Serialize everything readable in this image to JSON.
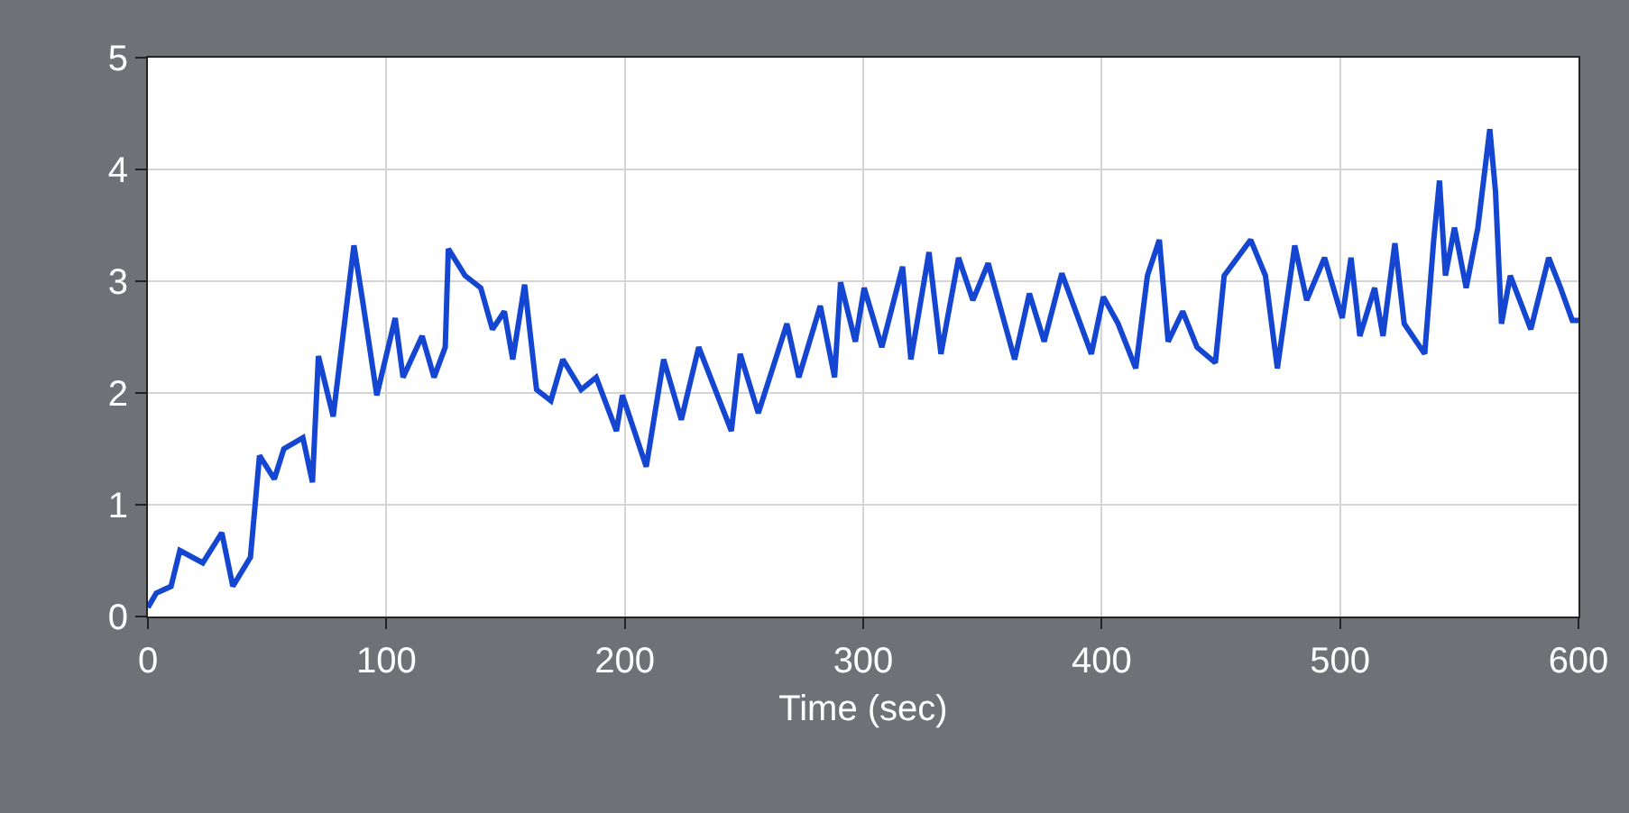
{
  "chart_data": {
    "type": "line",
    "xlabel": "Time (sec)",
    "xlim": [
      0,
      600
    ],
    "xticks": [
      0,
      100,
      200,
      300,
      400,
      500,
      600
    ],
    "ylim": [
      0,
      5
    ],
    "yticks": [
      0,
      1,
      2,
      3,
      4,
      5
    ],
    "grid": true,
    "marker": "none",
    "line_style": "solid",
    "series": [
      {
        "color": "#1446d2",
        "x": [
          0,
          3.5,
          9.7,
          13.4,
          23,
          31,
          35.6,
          43,
          46.8,
          53,
          57,
          65,
          69,
          71.5,
          77.7,
          82.7,
          86.4,
          90,
          96,
          103.7,
          107,
          115,
          120,
          124.7,
          126,
          133,
          139.6,
          144.5,
          149.5,
          153,
          158,
          163,
          169,
          174,
          181.7,
          188,
          196.5,
          199,
          209,
          216.3,
          223.7,
          231,
          244.7,
          248.4,
          256,
          268,
          273,
          282,
          288,
          290.5,
          296.7,
          300.4,
          307.8,
          316.5,
          320,
          327.6,
          332.6,
          340,
          346,
          352.4,
          363.5,
          369.7,
          375.9,
          383.3,
          395.7,
          400.7,
          406.9,
          414.3,
          419.2,
          424.2,
          427.9,
          434,
          440,
          447.7,
          451.4,
          462.5,
          468.7,
          473.7,
          481,
          486,
          493.5,
          500.9,
          504.6,
          508.3,
          514.5,
          518,
          523,
          526.9,
          535.5,
          539.3,
          541.7,
          544.2,
          548,
          552.9,
          557.8,
          562.8,
          565.2,
          567.7,
          571.4,
          580,
          587.5,
          592.5,
          597.4,
          600
        ],
        "values": [
          0.08,
          0.21,
          0.27,
          0.59,
          0.48,
          0.75,
          0.27,
          0.53,
          1.44,
          1.23,
          1.5,
          1.6,
          1.2,
          2.33,
          1.79,
          2.67,
          3.32,
          2.83,
          1.98,
          2.67,
          2.14,
          2.51,
          2.14,
          2.41,
          3.29,
          3.05,
          2.94,
          2.57,
          2.73,
          2.3,
          2.97,
          2.03,
          1.93,
          2.3,
          2.03,
          2.14,
          1.66,
          1.98,
          1.34,
          2.3,
          1.76,
          2.41,
          1.66,
          2.35,
          1.82,
          2.62,
          2.14,
          2.78,
          2.14,
          2.99,
          2.46,
          2.94,
          2.41,
          3.13,
          2.3,
          3.26,
          2.35,
          3.21,
          2.83,
          3.16,
          2.3,
          2.89,
          2.46,
          3.07,
          2.35,
          2.86,
          2.62,
          2.22,
          3.05,
          3.37,
          2.46,
          2.73,
          2.41,
          2.27,
          3.05,
          3.37,
          3.05,
          2.22,
          3.32,
          2.83,
          3.21,
          2.67,
          3.21,
          2.51,
          2.94,
          2.51,
          3.34,
          2.62,
          2.35,
          3.37,
          3.9,
          3.05,
          3.48,
          2.94,
          3.48,
          4.36,
          3.8,
          2.62,
          3.05,
          2.57,
          3.21,
          2.94,
          2.65,
          2.65
        ]
      }
    ]
  }
}
